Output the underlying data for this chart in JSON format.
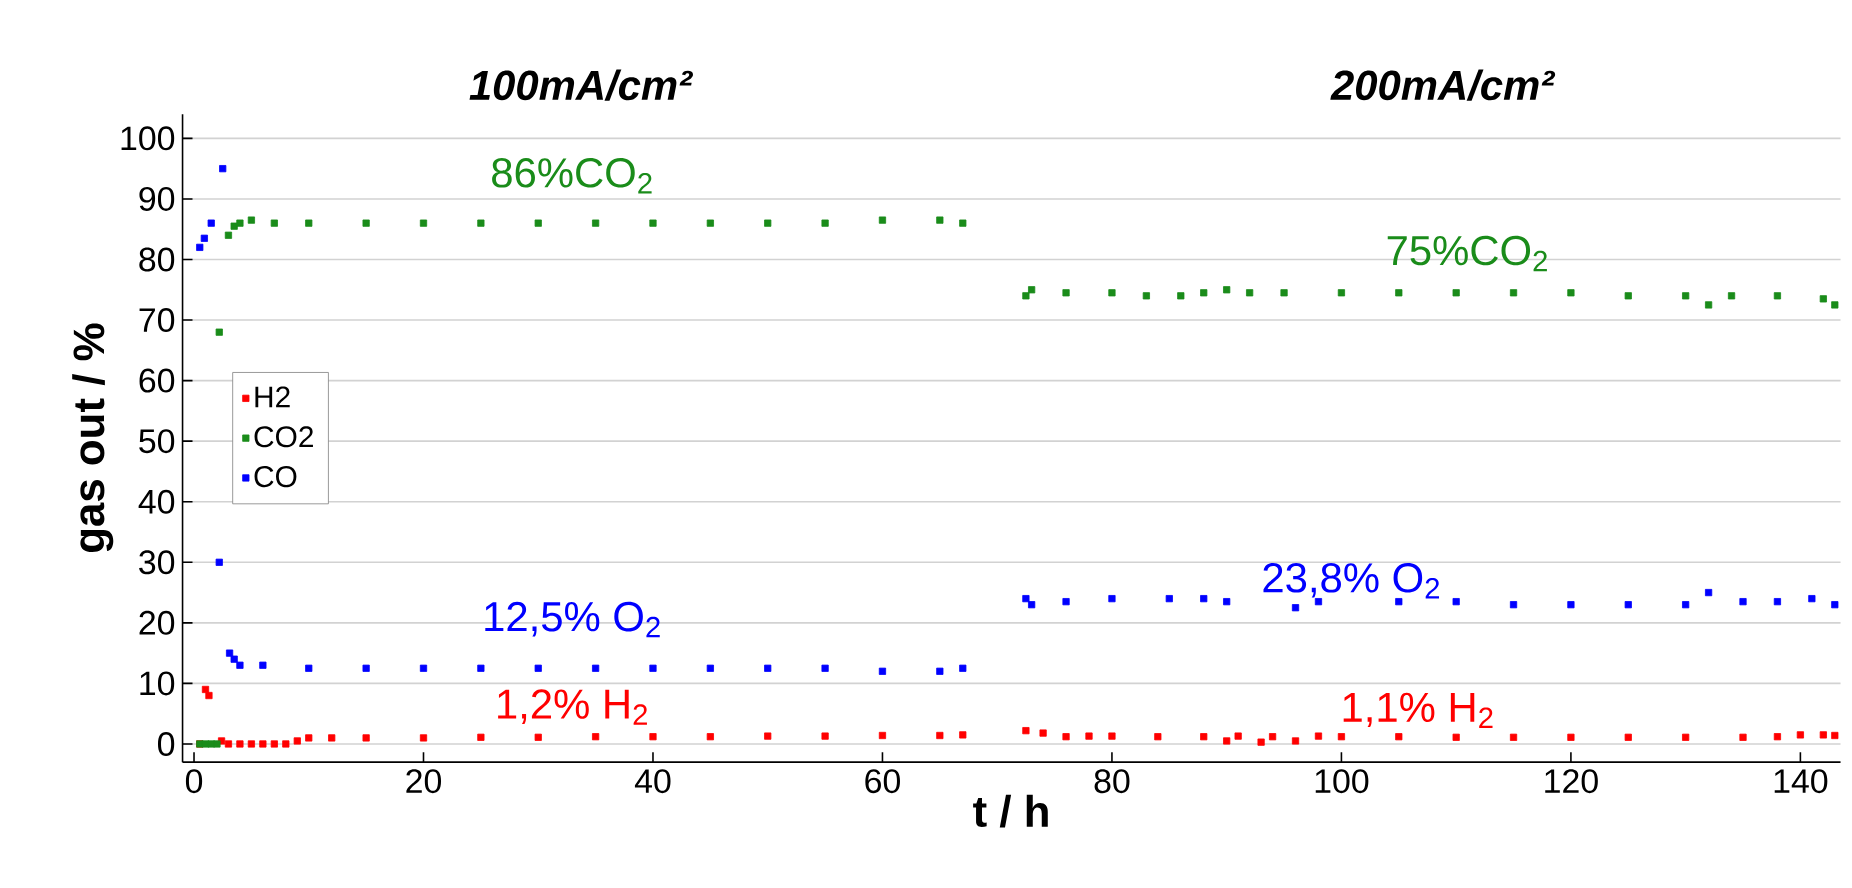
{
  "chart_data": {
    "type": "scatter",
    "annotations": [
      "100mA/cm²",
      "200mA/cm²",
      "86%CO$_{2}$",
      "12,5% O$_{2}$",
      "1,2% H$_{2}$",
      "75%CO$_{2}$",
      "23,8% O$_{2}$",
      "1,1% H$_{2}$"
    ],
    "xlabel": "t / h",
    "ylabel": "gas out / %",
    "xlim": [
      -1,
      143.5
    ],
    "ylim": [
      -3,
      104
    ],
    "xticks": [
      0,
      20,
      40,
      60,
      80,
      100,
      120,
      140
    ],
    "yticks": [
      0,
      10,
      20,
      30,
      40,
      50,
      60,
      70,
      80,
      90,
      100
    ],
    "grid": "y",
    "legend": "left",
    "marker": "square",
    "series": [
      {
        "name": "H2",
        "color": "#ff0000",
        "x": [
          0.5,
          1.0,
          1.3,
          2.4,
          3,
          4,
          5,
          6,
          7,
          8,
          9,
          10,
          12,
          15,
          20,
          25,
          30,
          35,
          40,
          45,
          50,
          55,
          60,
          65,
          67,
          72.5,
          74,
          76,
          78,
          80,
          84,
          88,
          90,
          91,
          93,
          94,
          96,
          98,
          100,
          105,
          110,
          115,
          120,
          125,
          130,
          135,
          138,
          140,
          142,
          143
        ],
        "values": [
          0,
          9,
          8,
          0.5,
          0,
          0,
          0,
          0,
          0,
          0,
          0.5,
          1,
          1,
          1,
          1,
          1.1,
          1.1,
          1.2,
          1.2,
          1.2,
          1.3,
          1.3,
          1.4,
          1.4,
          1.5,
          2.2,
          1.8,
          1.2,
          1.3,
          1.3,
          1.2,
          1.2,
          0.5,
          1.3,
          0.3,
          1.2,
          0.5,
          1.3,
          1.2,
          1.2,
          1.1,
          1.1,
          1.1,
          1.1,
          1.1,
          1.1,
          1.2,
          1.5,
          1.5,
          1.4
        ]
      },
      {
        "name": "CO2",
        "color": "#1a8c1a",
        "x": [
          0.5,
          1.0,
          1.5,
          2.0,
          2.2,
          3,
          3.5,
          4,
          5,
          7,
          10,
          15,
          20,
          25,
          30,
          35,
          40,
          45,
          50,
          55,
          60,
          65,
          67,
          72.5,
          73,
          76,
          80,
          83,
          86,
          88,
          90,
          92,
          95,
          100,
          105,
          110,
          115,
          120,
          125,
          130,
          132,
          134,
          138,
          142,
          143
        ],
        "values": [
          0,
          0,
          0,
          0,
          68,
          84,
          85.5,
          86,
          86.5,
          86,
          86,
          86,
          86,
          86,
          86,
          86,
          86,
          86,
          86,
          86,
          86.5,
          86.5,
          86,
          74,
          75,
          74.5,
          74.5,
          74,
          74,
          74.5,
          75,
          74.5,
          74.5,
          74.5,
          74.5,
          74.5,
          74.5,
          74.5,
          74,
          74,
          72.5,
          74,
          74,
          73.5,
          72.5
        ]
      },
      {
        "name": "CO",
        "color": "#0000ff",
        "x": [
          0.5,
          0.9,
          1.5,
          2.2,
          2.5,
          3.1,
          3.5,
          4,
          6,
          10,
          15,
          20,
          25,
          30,
          35,
          40,
          45,
          50,
          55,
          60,
          65,
          67,
          72.5,
          73,
          76,
          80,
          85,
          88,
          90,
          96,
          98,
          105,
          110,
          115,
          120,
          125,
          130,
          132,
          135,
          138,
          141,
          143
        ],
        "values": [
          82,
          83.5,
          86,
          30,
          95,
          15,
          14,
          13,
          13,
          12.5,
          12.5,
          12.5,
          12.5,
          12.5,
          12.5,
          12.5,
          12.5,
          12.5,
          12.5,
          12,
          12,
          12.5,
          24,
          23,
          23.5,
          24,
          24,
          24,
          23.5,
          22.5,
          23.5,
          23.5,
          23.5,
          23,
          23,
          23,
          23,
          25,
          23.5,
          23.5,
          24,
          23
        ]
      }
    ]
  }
}
